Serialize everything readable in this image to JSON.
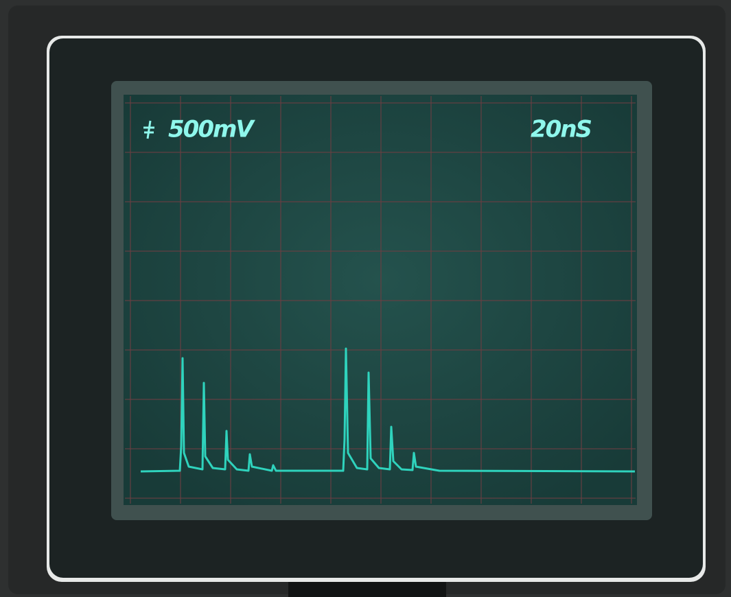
{
  "screen": {
    "channel_label": "500mV",
    "timebase_label": "20nS"
  }
}
